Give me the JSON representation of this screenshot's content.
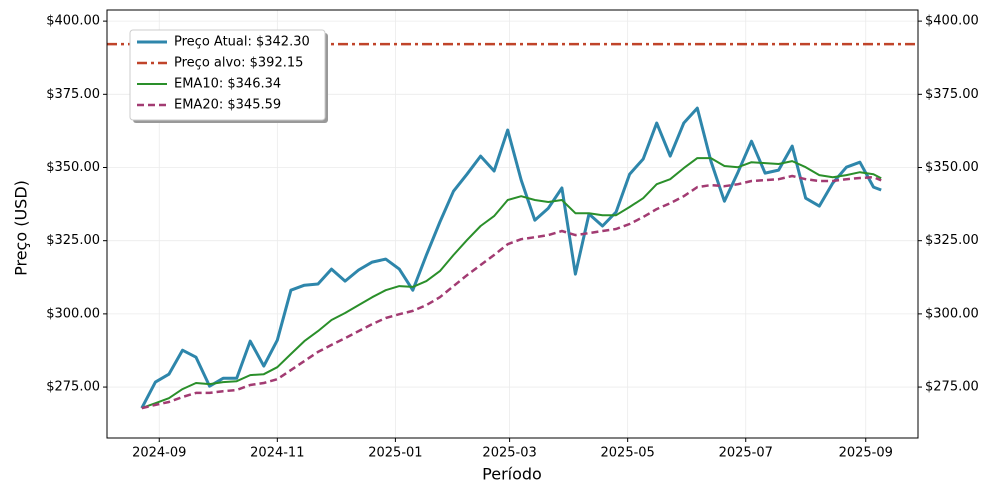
{
  "chart_data": {
    "type": "line",
    "xlabel": "Período",
    "ylabel": "Preço (USD)",
    "x": [
      "2024-08-23",
      "2024-08-30",
      "2024-09-06",
      "2024-09-13",
      "2024-09-20",
      "2024-09-27",
      "2024-10-04",
      "2024-10-11",
      "2024-10-18",
      "2024-10-25",
      "2024-11-01",
      "2024-11-08",
      "2024-11-15",
      "2024-11-22",
      "2024-11-29",
      "2024-12-06",
      "2024-12-13",
      "2024-12-20",
      "2024-12-27",
      "2025-01-03",
      "2025-01-10",
      "2025-01-17",
      "2025-01-24",
      "2025-01-31",
      "2025-02-07",
      "2025-02-14",
      "2025-02-21",
      "2025-02-28",
      "2025-03-07",
      "2025-03-14",
      "2025-03-21",
      "2025-03-28",
      "2025-04-04",
      "2025-04-11",
      "2025-04-18",
      "2025-04-25",
      "2025-05-02",
      "2025-05-09",
      "2025-05-16",
      "2025-05-23",
      "2025-05-30",
      "2025-06-06",
      "2025-06-13",
      "2025-06-20",
      "2025-06-27",
      "2025-07-04",
      "2025-07-11",
      "2025-07-18",
      "2025-07-25",
      "2025-08-01",
      "2025-08-08",
      "2025-08-15",
      "2025-08-22",
      "2025-08-29",
      "2025-09-05",
      "2025-09-09"
    ],
    "series": [
      {
        "name": "Preço Atual: $342.30",
        "color": "#2e86ab",
        "width": 3,
        "dash": "none",
        "values": [
          267.8,
          276.7,
          279.4,
          287.6,
          285.2,
          275.3,
          278,
          278,
          290.7,
          282.2,
          291,
          308.1,
          309.8,
          310.2,
          315.3,
          311.2,
          315,
          317.7,
          318.7,
          315.3,
          308.1,
          320.1,
          331.4,
          341.9,
          347.7,
          353.9,
          348.8,
          362.8,
          345.7,
          332,
          336.1,
          343,
          313.6,
          334.1,
          330,
          334.8,
          347.7,
          352.9,
          365.2,
          353.9,
          365.2,
          370.3,
          352.2,
          338.5,
          348.4,
          359,
          348.1,
          349.1,
          357.3,
          339.5,
          336.8,
          344.7,
          350.1,
          351.8,
          343.3,
          342.3
        ]
      },
      {
        "name": "EMA10: $346.34",
        "color": "#2a8f2a",
        "width": 2,
        "dash": "none",
        "values": [
          267.8,
          269.5,
          271.2,
          274.3,
          276.4,
          276,
          276.7,
          277,
          279.1,
          279.4,
          281.8,
          286.3,
          290.7,
          294.1,
          297.9,
          300.3,
          303,
          305.7,
          308.1,
          309.5,
          309.2,
          311.2,
          314.6,
          320.1,
          325.2,
          330,
          333.4,
          338.9,
          340.2,
          338.9,
          338.2,
          338.9,
          334.4,
          334.4,
          333.7,
          333.7,
          336.5,
          339.5,
          344.3,
          346,
          349.8,
          353.2,
          353.2,
          350.5,
          350.1,
          351.8,
          351.5,
          351.2,
          352.2,
          350.1,
          347.4,
          346.7,
          347.4,
          348.4,
          347.7,
          346.34
        ]
      },
      {
        "name": "EMA20: $345.59",
        "color": "#a23b72",
        "width": 2.5,
        "dash": "7 4",
        "values": [
          267.8,
          268.9,
          269.9,
          271.6,
          273,
          273,
          273.6,
          274,
          275.7,
          276.4,
          277.7,
          280.8,
          283.9,
          287,
          289.4,
          291.7,
          294.1,
          296.5,
          298.6,
          299.9,
          301,
          303,
          305.7,
          309.5,
          313.2,
          316.7,
          320.1,
          323.8,
          325.5,
          326.2,
          326.9,
          328.3,
          326.9,
          327.6,
          328.3,
          329,
          330.7,
          333.1,
          335.8,
          337.8,
          340.2,
          343.3,
          344,
          343.6,
          344.3,
          345.4,
          345.7,
          346,
          347.1,
          346,
          345.4,
          345.4,
          346,
          346.4,
          346.7,
          345.59
        ]
      }
    ],
    "hlines": [
      {
        "name": "Preço alvo: $392.15",
        "color": "#c0442a",
        "value": 392.15
      }
    ],
    "legend_order": [
      0,
      "h0",
      1,
      2
    ],
    "xlim": [
      "2024-08-05",
      "2025-09-28"
    ],
    "xticks": [
      "2024-09",
      "2024-11",
      "2025-01",
      "2025-03",
      "2025-05",
      "2025-07",
      "2025-09"
    ],
    "ylim": [
      257.6,
      403.8
    ],
    "yticks": [
      {
        "value": 275,
        "label": "$275.00"
      },
      {
        "value": 300,
        "label": "$300.00"
      },
      {
        "value": 325,
        "label": "$325.00"
      },
      {
        "value": 350,
        "label": "$350.00"
      },
      {
        "value": 375,
        "label": "$375.00"
      },
      {
        "value": 400,
        "label": "$400.00"
      }
    ],
    "y2lim": [
      257.6,
      403.8
    ],
    "y2ticks": [
      {
        "value": 275,
        "label": "$275.00"
      },
      {
        "value": 300,
        "label": "$300.00"
      },
      {
        "value": 325,
        "label": "$325.00"
      },
      {
        "value": 350,
        "label": "$350.00"
      },
      {
        "value": 375,
        "label": "$375.00"
      },
      {
        "value": 400,
        "label": "$400.00"
      }
    ],
    "grid": true,
    "legend": "upper left"
  }
}
